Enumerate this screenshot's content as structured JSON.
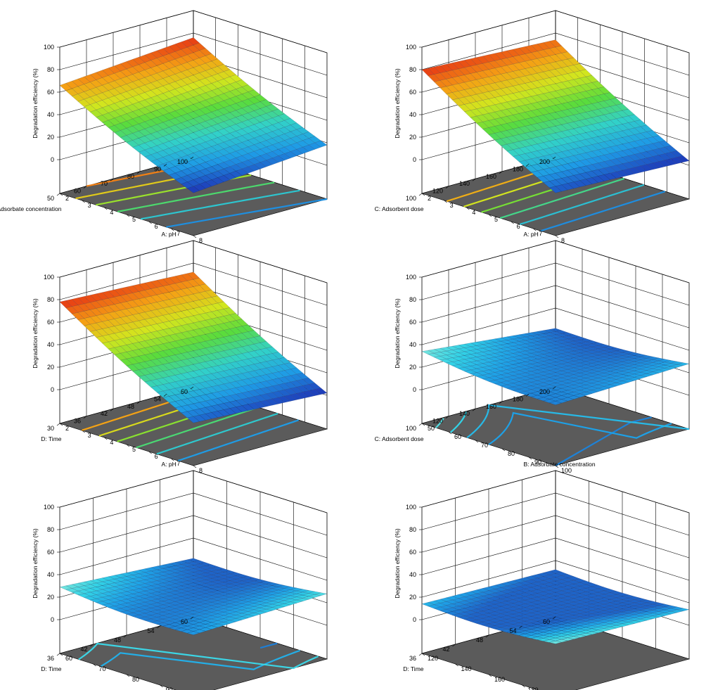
{
  "chart_data": [
    {
      "type": "surface",
      "panel": "a",
      "zlabel": "Degradation efficiency (%)",
      "zticks": [
        "0",
        "20",
        "40",
        "60",
        "80",
        "100"
      ],
      "zlim": [
        0,
        100
      ],
      "x_axis": {
        "label": "A: pH",
        "ticks": [
          "2",
          "3",
          "4",
          "5",
          "6",
          "7",
          "8"
        ],
        "range": [
          2,
          8
        ]
      },
      "y_axis": {
        "label": "B: Adsorbate concentration",
        "ticks": [
          "50",
          "60",
          "70",
          "80",
          "90",
          "100"
        ],
        "range": [
          50,
          100
        ]
      },
      "corner_values": {
        "x_min_y_min": 76,
        "x_min_y_max": 66,
        "x_max_y_min": 18,
        "x_max_y_max": 8
      },
      "contour_levels": [
        18,
        28,
        38,
        48,
        58,
        68
      ],
      "colormap": [
        "#1e32b4",
        "#1e9be6",
        "#32d2c8",
        "#5adc3c",
        "#d2e61e",
        "#f5a014",
        "#e63214"
      ]
    },
    {
      "type": "surface",
      "panel": "b",
      "zlabel": "Degradation efficiency (%)",
      "zticks": [
        "0",
        "20",
        "40",
        "60",
        "80",
        "100"
      ],
      "zlim": [
        0,
        100
      ],
      "x_axis": {
        "label": "A: pH",
        "ticks": [
          "2",
          "3",
          "4",
          "5",
          "6",
          "7",
          "8"
        ],
        "range": [
          2,
          8
        ]
      },
      "y_axis": {
        "label": "C: Adsorbent dose",
        "ticks": [
          "100",
          "120",
          "140",
          "160",
          "180",
          "200"
        ],
        "range": [
          100,
          200
        ]
      },
      "corner_values": {
        "x_min_y_min": 74,
        "x_min_y_max": 80,
        "x_max_y_min": 4,
        "x_max_y_max": 8
      },
      "contour_levels": [
        15,
        25,
        35,
        45,
        55,
        65
      ],
      "colormap": [
        "#1e32b4",
        "#1e9be6",
        "#32d2c8",
        "#5adc3c",
        "#d2e61e",
        "#f5a014",
        "#e63214"
      ]
    },
    {
      "type": "surface",
      "panel": "c",
      "zlabel": "Degradation efficiency (%)",
      "zticks": [
        "0",
        "20",
        "40",
        "60",
        "80",
        "100"
      ],
      "zlim": [
        0,
        100
      ],
      "x_axis": {
        "label": "A: pH",
        "ticks": [
          "2",
          "3",
          "4",
          "5",
          "6",
          "7",
          "8"
        ],
        "range": [
          2,
          8
        ]
      },
      "y_axis": {
        "label": "D: Time",
        "ticks": [
          "30",
          "36",
          "42",
          "48",
          "54",
          "60"
        ],
        "range": [
          30,
          60
        ]
      },
      "corner_values": {
        "x_min_y_min": 72,
        "x_min_y_max": 78,
        "x_max_y_min": 2,
        "x_max_y_max": 8
      },
      "contour_levels": [
        15,
        25,
        35,
        45,
        55,
        65
      ],
      "colormap": [
        "#1e32b4",
        "#1e9be6",
        "#32d2c8",
        "#5adc3c",
        "#d2e61e",
        "#f5a014",
        "#e63214"
      ]
    },
    {
      "type": "surface",
      "panel": "d",
      "zlabel": "Degradation efficiency (%)",
      "zticks": [
        "0",
        "20",
        "40",
        "60",
        "80",
        "100"
      ],
      "zlim": [
        0,
        100
      ],
      "x_axis": {
        "label": "B: Adsorbate concentration",
        "ticks": [
          "50",
          "60",
          "70",
          "80",
          "90",
          "100"
        ],
        "range": [
          50,
          100
        ]
      },
      "y_axis": {
        "label": "C: Adsorbent dose",
        "ticks": [
          "100",
          "120",
          "140",
          "160",
          "180",
          "200"
        ],
        "range": [
          100,
          200
        ]
      },
      "corner_values": {
        "x_min_y_min": 22,
        "x_min_y_max": 34,
        "x_max_y_min": 28,
        "x_max_y_max": 24
      },
      "contour_levels": [
        24,
        26,
        28,
        30,
        32
      ],
      "colormap": [
        "#1e64c8",
        "#1ea0e6",
        "#32d2e6",
        "#78e6dc"
      ]
    },
    {
      "type": "surface",
      "panel": "e",
      "zlabel": "Degradation efficiency (%)",
      "zticks": [
        "0",
        "20",
        "40",
        "60",
        "80",
        "100"
      ],
      "zlim": [
        0,
        100
      ],
      "x_axis": {
        "label": "B: Adsorbate concentration",
        "ticks": [
          "60",
          "70",
          "80",
          "90",
          "100"
        ],
        "range": [
          55,
          100
        ]
      },
      "y_axis": {
        "label": "D: Time",
        "ticks": [
          "36",
          "42",
          "48",
          "54",
          "60"
        ],
        "range": [
          30,
          60
        ]
      },
      "corner_values": {
        "x_min_y_min": 22,
        "x_min_y_max": 29,
        "x_max_y_min": 28,
        "x_max_y_max": 24
      },
      "contour_levels": [
        23,
        25,
        27
      ],
      "colormap": [
        "#1e64c8",
        "#1ea0e6",
        "#32d2e6",
        "#78e6dc"
      ]
    },
    {
      "type": "surface",
      "panel": "f",
      "zlabel": "Degradation efficiency (%)",
      "zticks": [
        "0",
        "20",
        "40",
        "60",
        "80",
        "100"
      ],
      "zlim": [
        0,
        100
      ],
      "x_axis": {
        "label": "C: Adsorbent dose",
        "ticks": [
          "120",
          "140",
          "160",
          "180",
          "200"
        ],
        "range": [
          110,
          200
        ]
      },
      "y_axis": {
        "label": "D: Time",
        "ticks": [
          "36",
          "42",
          "48",
          "54",
          "60"
        ],
        "range": [
          30,
          60
        ]
      },
      "corner_values": {
        "x_min_y_min": 12,
        "x_min_y_max": 14,
        "x_max_y_min": 14,
        "x_max_y_max": 16
      },
      "contour_levels": [
        16,
        18,
        20,
        22
      ],
      "colormap": [
        "#1e64c8",
        "#1ea0e6",
        "#32d2e6",
        "#78e6dc"
      ]
    }
  ]
}
